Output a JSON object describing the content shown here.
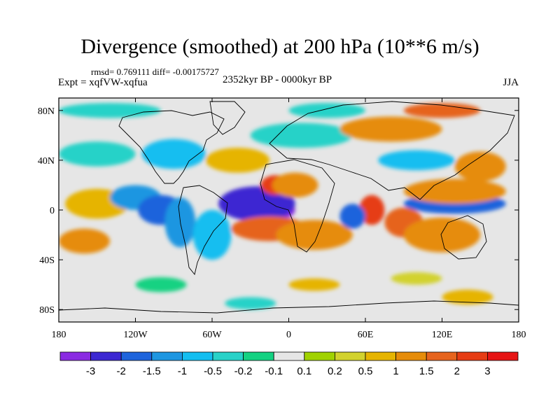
{
  "title": "Divergence (smoothed) at 200 hPa (10**6 m/s)",
  "stats": "rmsd= 0.769111 diff= -0.00175727",
  "experiment": "Expt = xqfVW-xqfua",
  "period": "2352kyr BP - 0000kyr BP",
  "season": "JJA",
  "x_axis": {
    "ticks": [
      {
        "lon": -180,
        "label": "180"
      },
      {
        "lon": -120,
        "label": "120W"
      },
      {
        "lon": -60,
        "label": "60W"
      },
      {
        "lon": 0,
        "label": "0"
      },
      {
        "lon": 60,
        "label": "60E"
      },
      {
        "lon": 120,
        "label": "120E"
      },
      {
        "lon": 180,
        "label": "180"
      }
    ]
  },
  "y_axis": {
    "ticks": [
      {
        "lat": 80,
        "label": "80N"
      },
      {
        "lat": 40,
        "label": "40N"
      },
      {
        "lat": 0,
        "label": "0"
      },
      {
        "lat": -40,
        "label": "40S"
      },
      {
        "lat": -80,
        "label": "80S"
      }
    ]
  },
  "colorbar": {
    "colors": [
      "#8a2be2",
      "#3c28d2",
      "#1e64dc",
      "#1e96e1",
      "#14bef0",
      "#28d2c8",
      "#14d282",
      "#e6e6e6",
      "#a0d200",
      "#d2d22d",
      "#e6b400",
      "#e68c0a",
      "#e6641e",
      "#e63c14",
      "#e61414"
    ],
    "labels": [
      "-3",
      "-2",
      "-1.5",
      "-1",
      "-0.5",
      "-0.2",
      "-0.1",
      "0.1",
      "0.2",
      "0.5",
      "1",
      "1.5",
      "2",
      "3"
    ]
  },
  "map": {
    "projection": "cylindrical-equidistant",
    "lon_range": [
      -180,
      180
    ],
    "lat_range": [
      -90,
      90
    ],
    "background_level": 7,
    "anomalies": [
      {
        "lon": -20,
        "lat": 0,
        "level": 0,
        "rx": 25,
        "ry": 10
      },
      {
        "lon": -25,
        "lat": 5,
        "level": 1,
        "rx": 30,
        "ry": 14
      },
      {
        "lon": -10,
        "lat": 20,
        "level": 13,
        "rx": 12,
        "ry": 8
      },
      {
        "lon": 5,
        "lat": 20,
        "level": 11,
        "rx": 18,
        "ry": 10
      },
      {
        "lon": -15,
        "lat": -15,
        "level": 12,
        "rx": 30,
        "ry": 10
      },
      {
        "lon": 20,
        "lat": -20,
        "level": 11,
        "rx": 30,
        "ry": 12
      },
      {
        "lon": 65,
        "lat": 0,
        "level": 13,
        "rx": 10,
        "ry": 12
      },
      {
        "lon": 50,
        "lat": -5,
        "level": 2,
        "rx": 10,
        "ry": 10
      },
      {
        "lon": 90,
        "lat": -10,
        "level": 12,
        "rx": 15,
        "ry": 12
      },
      {
        "lon": 130,
        "lat": 5,
        "level": 2,
        "rx": 40,
        "ry": 8
      },
      {
        "lon": 130,
        "lat": 15,
        "level": 11,
        "rx": 40,
        "ry": 10
      },
      {
        "lon": 120,
        "lat": -20,
        "level": 11,
        "rx": 30,
        "ry": 14
      },
      {
        "lon": -150,
        "lat": 5,
        "level": 10,
        "rx": 25,
        "ry": 12
      },
      {
        "lon": -120,
        "lat": 10,
        "level": 3,
        "rx": 20,
        "ry": 10
      },
      {
        "lon": -100,
        "lat": 0,
        "level": 2,
        "rx": 18,
        "ry": 12
      },
      {
        "lon": -85,
        "lat": -10,
        "level": 3,
        "rx": 12,
        "ry": 20
      },
      {
        "lon": -60,
        "lat": -20,
        "level": 4,
        "rx": 15,
        "ry": 20
      },
      {
        "lon": -160,
        "lat": -25,
        "level": 11,
        "rx": 20,
        "ry": 10
      },
      {
        "lon": -150,
        "lat": 45,
        "level": 5,
        "rx": 30,
        "ry": 10
      },
      {
        "lon": -90,
        "lat": 45,
        "level": 4,
        "rx": 25,
        "ry": 12
      },
      {
        "lon": -40,
        "lat": 40,
        "level": 10,
        "rx": 25,
        "ry": 10
      },
      {
        "lon": 10,
        "lat": 60,
        "level": 5,
        "rx": 40,
        "ry": 10
      },
      {
        "lon": 80,
        "lat": 65,
        "level": 11,
        "rx": 40,
        "ry": 10
      },
      {
        "lon": 100,
        "lat": 40,
        "level": 4,
        "rx": 30,
        "ry": 8
      },
      {
        "lon": 150,
        "lat": 35,
        "level": 11,
        "rx": 20,
        "ry": 12
      },
      {
        "lon": 120,
        "lat": 80,
        "level": 12,
        "rx": 30,
        "ry": 6
      },
      {
        "lon": -140,
        "lat": 80,
        "level": 5,
        "rx": 40,
        "ry": 6
      },
      {
        "lon": 30,
        "lat": 80,
        "level": 5,
        "rx": 30,
        "ry": 6
      },
      {
        "lon": -100,
        "lat": -60,
        "level": 6,
        "rx": 20,
        "ry": 6
      },
      {
        "lon": 20,
        "lat": -60,
        "level": 10,
        "rx": 20,
        "ry": 5
      },
      {
        "lon": 100,
        "lat": -55,
        "level": 9,
        "rx": 20,
        "ry": 5
      },
      {
        "lon": -30,
        "lat": -75,
        "level": 5,
        "rx": 20,
        "ry": 5
      },
      {
        "lon": 140,
        "lat": -70,
        "level": 10,
        "rx": 20,
        "ry": 6
      }
    ]
  }
}
